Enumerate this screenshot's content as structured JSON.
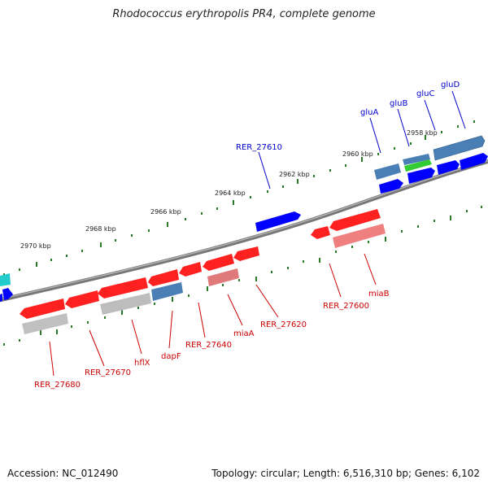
{
  "header": {
    "title": "Rhodococcus erythropolis PR4, complete genome"
  },
  "footer": {
    "accession": "Accession: NC_012490",
    "topology": "Topology: circular; Length: 6,516,310 bp; Genes: 6,102"
  },
  "scale": {
    "ticks": [
      "2958 kbp",
      "2960 kbp",
      "2962 kbp",
      "2964 kbp",
      "2966 kbp",
      "2968 kbp",
      "2970 kbp"
    ]
  },
  "genes_forward": [
    {
      "label": "gluD",
      "color": "#4a7fb5"
    },
    {
      "label": "gluC",
      "color": "#0000ff"
    },
    {
      "label": "gluB",
      "color": "#33cc33"
    },
    {
      "label": "gluA",
      "color": "#4a7fb5"
    },
    {
      "label": "RER_27610",
      "color": "#0000ff"
    }
  ],
  "genes_reverse": [
    {
      "label": "miaB",
      "color": "#ff0000"
    },
    {
      "label": "RER_27600",
      "color": "#ff0000"
    },
    {
      "label": "RER_27620",
      "color": "#ff0000"
    },
    {
      "label": "miaA",
      "color": "#ff0000"
    },
    {
      "label": "RER_27640",
      "color": "#ff0000"
    },
    {
      "label": "dapF",
      "color": "#4a7fb5"
    },
    {
      "label": "hflX",
      "color": "#ff0000"
    },
    {
      "label": "RER_27670",
      "color": "#ff0000"
    },
    {
      "label": "RER_27680",
      "color": "#ff0000"
    }
  ]
}
